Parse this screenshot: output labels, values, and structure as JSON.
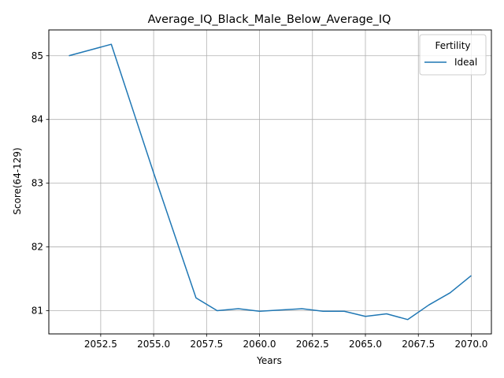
{
  "chart_data": {
    "type": "line",
    "title": "Average_IQ_Black_Male_Below_Average_IQ",
    "xlabel": "Years",
    "ylabel": "Score(64-129)",
    "xlim": [
      2050.05,
      2070.95
    ],
    "ylim": [
      80.635,
      85.405
    ],
    "xticks": [
      2052.5,
      2055.0,
      2057.5,
      2060.0,
      2062.5,
      2065.0,
      2067.5,
      2070.0
    ],
    "xtick_labels": [
      "2052.5",
      "2055.0",
      "2057.5",
      "2060.0",
      "2062.5",
      "2065.0",
      "2067.5",
      "2070.0"
    ],
    "yticks": [
      81,
      82,
      83,
      84,
      85
    ],
    "ytick_labels": [
      "81",
      "82",
      "83",
      "84",
      "85"
    ],
    "grid": true,
    "legend": {
      "title": "Fertility",
      "placement": "upper-right"
    },
    "series": [
      {
        "name": "Ideal",
        "color": "#1f77b4",
        "x": [
          2051,
          2052,
          2053,
          2054,
          2055,
          2056,
          2057,
          2058,
          2059,
          2060,
          2061,
          2062,
          2063,
          2064,
          2065,
          2066,
          2067,
          2068,
          2069,
          2070
        ],
        "y": [
          85.0,
          85.09,
          85.18,
          84.17,
          83.16,
          82.18,
          81.2,
          81.0,
          81.03,
          80.99,
          81.01,
          81.03,
          80.99,
          80.99,
          80.91,
          80.95,
          80.86,
          81.09,
          81.28,
          81.55
        ]
      }
    ]
  }
}
